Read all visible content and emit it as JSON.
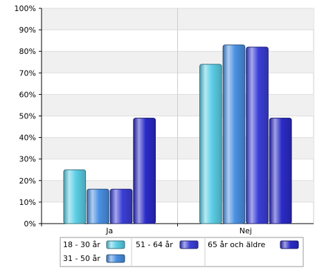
{
  "chart_data": {
    "type": "bar",
    "categories": [
      "Ja",
      "Nej"
    ],
    "series": [
      {
        "name": "18 - 30 år",
        "values": [
          25,
          74
        ],
        "color": "#5ccfe6"
      },
      {
        "name": "31 - 50 år",
        "values": [
          16,
          83
        ],
        "color": "#4a90e2"
      },
      {
        "name": "51 - 64 år",
        "values": [
          16,
          82
        ],
        "color": "#3b3fd6"
      },
      {
        "name": "65 år och äldre",
        "values": [
          49,
          49
        ],
        "color": "#2b2bc8"
      }
    ],
    "ylim": [
      0,
      100
    ],
    "yticks": [
      "0%",
      "10%",
      "20%",
      "30%",
      "40%",
      "50%",
      "60%",
      "70%",
      "80%",
      "90%",
      "100%"
    ],
    "xlabel": "",
    "ylabel": "",
    "title": "",
    "grid": true,
    "legend_position": "bottom"
  }
}
